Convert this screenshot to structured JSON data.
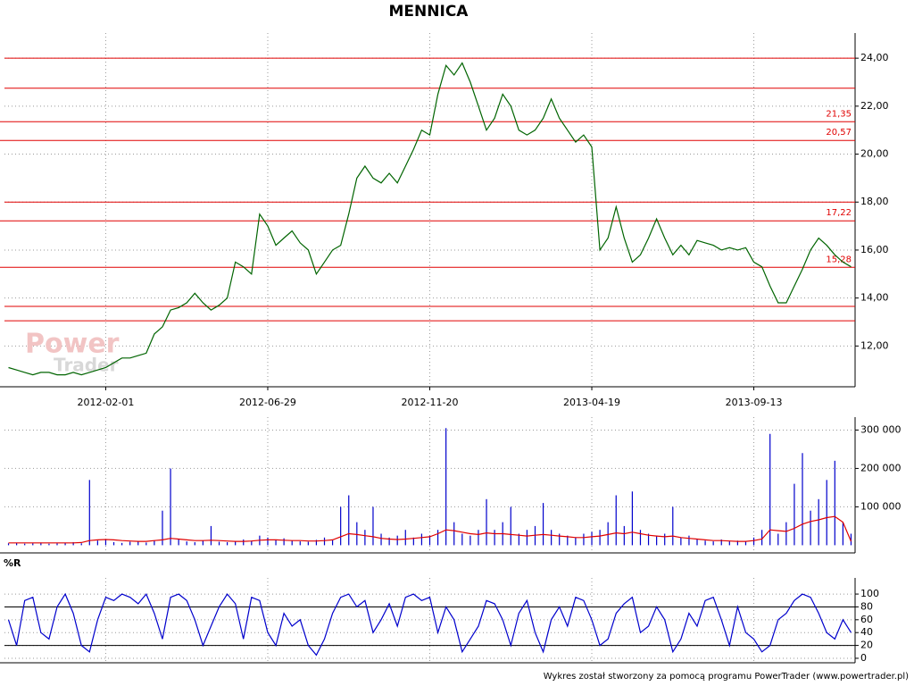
{
  "chart_data": [
    {
      "type": "line",
      "title": "MENNICA",
      "color": "#006400",
      "watermark": [
        "Power",
        "Trader"
      ],
      "categories": [
        null,
        null,
        null,
        null,
        null,
        null,
        null,
        null,
        null,
        null,
        null,
        null,
        "2012-02-01",
        null,
        null,
        null,
        null,
        null,
        null,
        null,
        null,
        null,
        null,
        null,
        null,
        null,
        null,
        null,
        null,
        null,
        null,
        null,
        "2012-06-29",
        null,
        null,
        null,
        null,
        null,
        null,
        null,
        null,
        null,
        null,
        null,
        null,
        null,
        null,
        null,
        null,
        null,
        null,
        null,
        "2012-11-20",
        null,
        null,
        null,
        null,
        null,
        null,
        null,
        null,
        null,
        null,
        null,
        null,
        null,
        null,
        null,
        null,
        null,
        null,
        null,
        "2013-04-19",
        null,
        null,
        null,
        null,
        null,
        null,
        null,
        null,
        null,
        null,
        null,
        null,
        null,
        null,
        null,
        null,
        null,
        null,
        null,
        "2013-09-13",
        null,
        null,
        null,
        null,
        null,
        null,
        null,
        null,
        null,
        null,
        null,
        null
      ],
      "values": [
        11.1,
        11.0,
        10.9,
        10.8,
        10.9,
        10.9,
        10.8,
        10.8,
        10.9,
        10.8,
        10.9,
        11.0,
        11.1,
        11.3,
        11.5,
        11.5,
        11.6,
        11.7,
        12.5,
        12.8,
        13.5,
        13.6,
        13.8,
        14.2,
        13.8,
        13.5,
        13.7,
        14.0,
        15.5,
        15.3,
        15.0,
        17.5,
        17.0,
        16.2,
        16.5,
        16.8,
        16.3,
        16.0,
        15.0,
        15.5,
        16.0,
        16.2,
        17.5,
        19.0,
        19.5,
        19.0,
        18.8,
        19.2,
        18.8,
        19.5,
        20.2,
        21.0,
        20.8,
        22.5,
        23.7,
        23.3,
        23.8,
        23.0,
        22.0,
        21.0,
        21.5,
        22.5,
        22.0,
        21.0,
        20.8,
        21.0,
        21.5,
        22.3,
        21.5,
        21.0,
        20.5,
        20.8,
        20.3,
        16.0,
        16.5,
        17.8,
        16.5,
        15.5,
        15.8,
        16.5,
        17.3,
        16.5,
        15.8,
        16.2,
        15.8,
        16.4,
        16.3,
        16.2,
        16.0,
        16.1,
        16.0,
        16.1,
        15.5,
        15.3,
        14.5,
        13.8,
        13.8,
        14.5,
        15.2,
        16.0,
        16.5,
        16.2,
        15.8,
        15.5,
        15.3
      ],
      "ylim": [
        10.3,
        24.75
      ],
      "yticks": [
        {
          "value": 12,
          "label": "12,00"
        },
        {
          "value": 14,
          "label": "14,00"
        },
        {
          "value": 16,
          "label": "16,00"
        },
        {
          "value": 18,
          "label": "18,00"
        },
        {
          "value": 20,
          "label": "20,00"
        },
        {
          "value": 22,
          "label": "22,00"
        },
        {
          "value": 24,
          "label": "24,00"
        }
      ],
      "levels": [
        {
          "value": 21.35,
          "label": "21,35"
        },
        {
          "value": 20.57,
          "label": "20,57"
        },
        {
          "value": 17.22,
          "label": "17,22"
        },
        {
          "value": 15.28,
          "label": "15,28"
        }
      ],
      "lines": [
        24.0,
        22.75,
        18.0,
        13.65,
        13.05
      ],
      "line_color": "#e00000",
      "grid": true
    },
    {
      "type": "bar",
      "series": [
        {
          "color": "#0000cc",
          "values": [
            5000,
            6000,
            4000,
            5000,
            7000,
            4000,
            5000,
            6000,
            8000,
            5000,
            170000,
            12000,
            15000,
            8000,
            6000,
            9000,
            10000,
            7000,
            12000,
            90000,
            200000,
            15000,
            10000,
            8000,
            12000,
            50000,
            9000,
            8000,
            10000,
            15000,
            12000,
            25000,
            20000,
            15000,
            18000,
            12000,
            10000,
            9000,
            14000,
            20000,
            15000,
            100000,
            130000,
            60000,
            40000,
            100000,
            30000,
            20000,
            25000,
            40000,
            20000,
            30000,
            25000,
            40000,
            305000,
            60000,
            30000,
            25000,
            40000,
            120000,
            40000,
            60000,
            100000,
            30000,
            40000,
            50000,
            110000,
            40000,
            30000,
            25000,
            20000,
            30000,
            35000,
            40000,
            60000,
            130000,
            50000,
            140000,
            40000,
            30000,
            25000,
            30000,
            100000,
            20000,
            25000,
            15000,
            12000,
            10000,
            15000,
            10000,
            12000,
            10000,
            20000,
            40000,
            290000,
            30000,
            60000,
            160000,
            240000,
            90000,
            120000,
            170000,
            220000,
            60000,
            30000
          ]
        },
        {
          "color": "#e00000",
          "values": [
            6000,
            6000,
            6000,
            6000,
            6000,
            6000,
            6000,
            6000,
            6000,
            7000,
            12000,
            14000,
            15000,
            14000,
            12000,
            11000,
            10000,
            10000,
            12000,
            14000,
            18000,
            16000,
            14000,
            12000,
            12000,
            13000,
            12000,
            11000,
            10000,
            10000,
            11000,
            13000,
            14000,
            14000,
            13000,
            12000,
            12000,
            11000,
            11000,
            12000,
            14000,
            22000,
            30000,
            28000,
            25000,
            22000,
            18000,
            16000,
            15000,
            16000,
            18000,
            20000,
            22000,
            30000,
            40000,
            38000,
            34000,
            30000,
            28000,
            32000,
            30000,
            30000,
            28000,
            26000,
            24000,
            26000,
            28000,
            26000,
            24000,
            22000,
            20000,
            20000,
            22000,
            24000,
            28000,
            32000,
            30000,
            34000,
            30000,
            26000,
            24000,
            22000,
            24000,
            20000,
            18000,
            16000,
            14000,
            12000,
            12000,
            11000,
            10000,
            10000,
            12000,
            16000,
            40000,
            38000,
            36000,
            44000,
            55000,
            62000,
            66000,
            72000,
            75000,
            60000,
            10000
          ]
        }
      ],
      "ylim": [
        -20000,
        315000
      ],
      "yticks": [
        {
          "value": 100000,
          "label": "100 000"
        },
        {
          "value": 200000,
          "label": "200 000"
        },
        {
          "value": 300000,
          "label": "300 000"
        }
      ],
      "grid": true
    },
    {
      "type": "line",
      "title": "%R",
      "color": "#0000cc",
      "values": [
        60,
        20,
        90,
        95,
        40,
        30,
        80,
        100,
        70,
        20,
        10,
        60,
        95,
        90,
        100,
        95,
        85,
        100,
        70,
        30,
        95,
        100,
        90,
        60,
        20,
        50,
        80,
        100,
        85,
        30,
        95,
        90,
        40,
        20,
        70,
        50,
        60,
        20,
        5,
        30,
        70,
        95,
        100,
        80,
        90,
        40,
        60,
        85,
        50,
        95,
        100,
        90,
        95,
        40,
        80,
        60,
        10,
        30,
        50,
        90,
        85,
        60,
        20,
        70,
        90,
        40,
        10,
        60,
        80,
        50,
        95,
        90,
        60,
        20,
        30,
        70,
        85,
        95,
        40,
        50,
        80,
        60,
        10,
        30,
        70,
        50,
        90,
        95,
        60,
        20,
        80,
        40,
        30,
        10,
        20,
        60,
        70,
        90,
        100,
        95,
        70,
        40,
        30,
        60,
        40
      ],
      "ylim": [
        -7,
        114
      ],
      "yticks": [
        0,
        20,
        40,
        60,
        80,
        100
      ],
      "lines": [
        20,
        80
      ],
      "line_color": "#000000",
      "grid": true
    }
  ],
  "footer": "Wykres został stworzony za pomocą programu PowerTrader (www.powertrader.pl)"
}
